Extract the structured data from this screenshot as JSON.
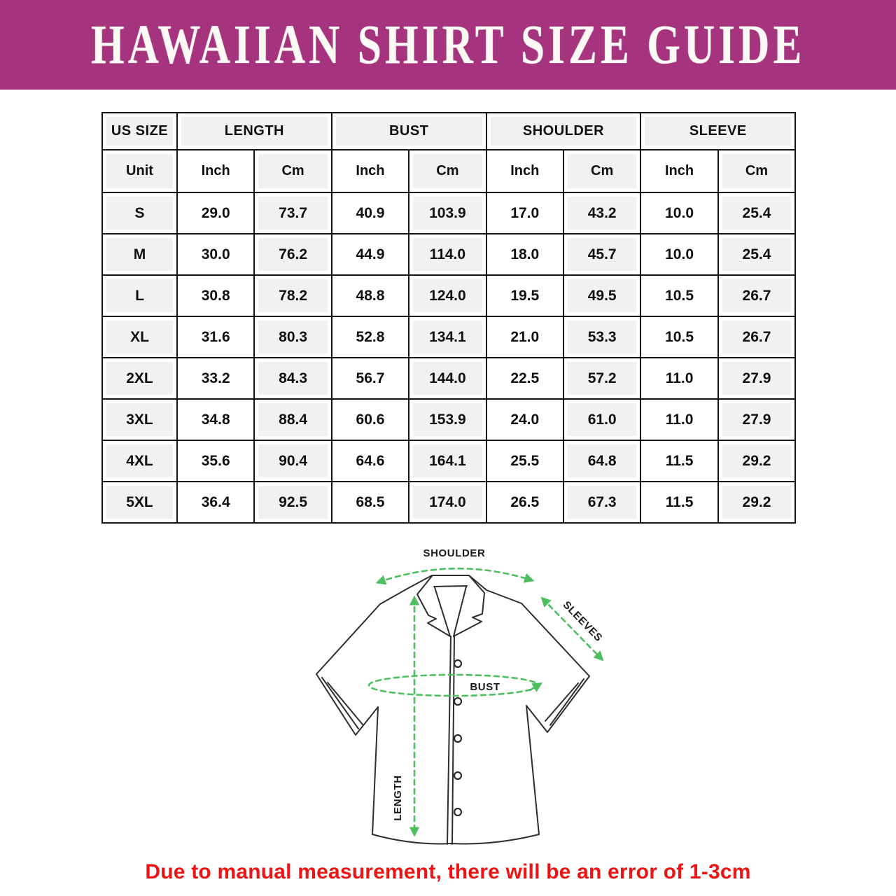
{
  "banner": {
    "title": "HAWAIIAN SHIRT SIZE GUIDE"
  },
  "colors": {
    "banner_bg": "#A5337D",
    "cell_gray": "#F1F1F1",
    "grid_black": "#141414",
    "diagram_green": "#4DBF5F",
    "shirt_outline": "#2E2E2E",
    "note_red": "#EE1414"
  },
  "table": {
    "group_headers": [
      {
        "label": "US SIZE",
        "span": 1
      },
      {
        "label": "LENGTH",
        "span": 2
      },
      {
        "label": "BUST",
        "span": 2
      },
      {
        "label": "SHOULDER",
        "span": 2
      },
      {
        "label": "SLEEVE",
        "span": 2
      }
    ],
    "unit_row": [
      "Unit",
      "Inch",
      "Cm",
      "Inch",
      "Cm",
      "Inch",
      "Cm",
      "Inch",
      "Cm"
    ],
    "rows": [
      {
        "size": "S",
        "values": [
          "29.0",
          "73.7",
          "40.9",
          "103.9",
          "17.0",
          "43.2",
          "10.0",
          "25.4"
        ]
      },
      {
        "size": "M",
        "values": [
          "30.0",
          "76.2",
          "44.9",
          "114.0",
          "18.0",
          "45.7",
          "10.0",
          "25.4"
        ]
      },
      {
        "size": "L",
        "values": [
          "30.8",
          "78.2",
          "48.8",
          "124.0",
          "19.5",
          "49.5",
          "10.5",
          "26.7"
        ]
      },
      {
        "size": "XL",
        "values": [
          "31.6",
          "80.3",
          "52.8",
          "134.1",
          "21.0",
          "53.3",
          "10.5",
          "26.7"
        ]
      },
      {
        "size": "2XL",
        "values": [
          "33.2",
          "84.3",
          "56.7",
          "144.0",
          "22.5",
          "57.2",
          "11.0",
          "27.9"
        ]
      },
      {
        "size": "3XL",
        "values": [
          "34.8",
          "88.4",
          "60.6",
          "153.9",
          "24.0",
          "61.0",
          "11.0",
          "27.9"
        ]
      },
      {
        "size": "4XL",
        "values": [
          "35.6",
          "90.4",
          "64.6",
          "164.1",
          "25.5",
          "64.8",
          "11.5",
          "29.2"
        ]
      },
      {
        "size": "5XL",
        "values": [
          "36.4",
          "92.5",
          "68.5",
          "174.0",
          "26.5",
          "67.3",
          "11.5",
          "29.2"
        ]
      }
    ]
  },
  "diagram": {
    "labels": {
      "shoulder": "SHOULDER",
      "sleeves": "SLEEVES",
      "bust": "BUST",
      "length": "LENGTH"
    }
  },
  "note": {
    "text": "Due to manual measurement, there will be an error of 1-3cm"
  }
}
